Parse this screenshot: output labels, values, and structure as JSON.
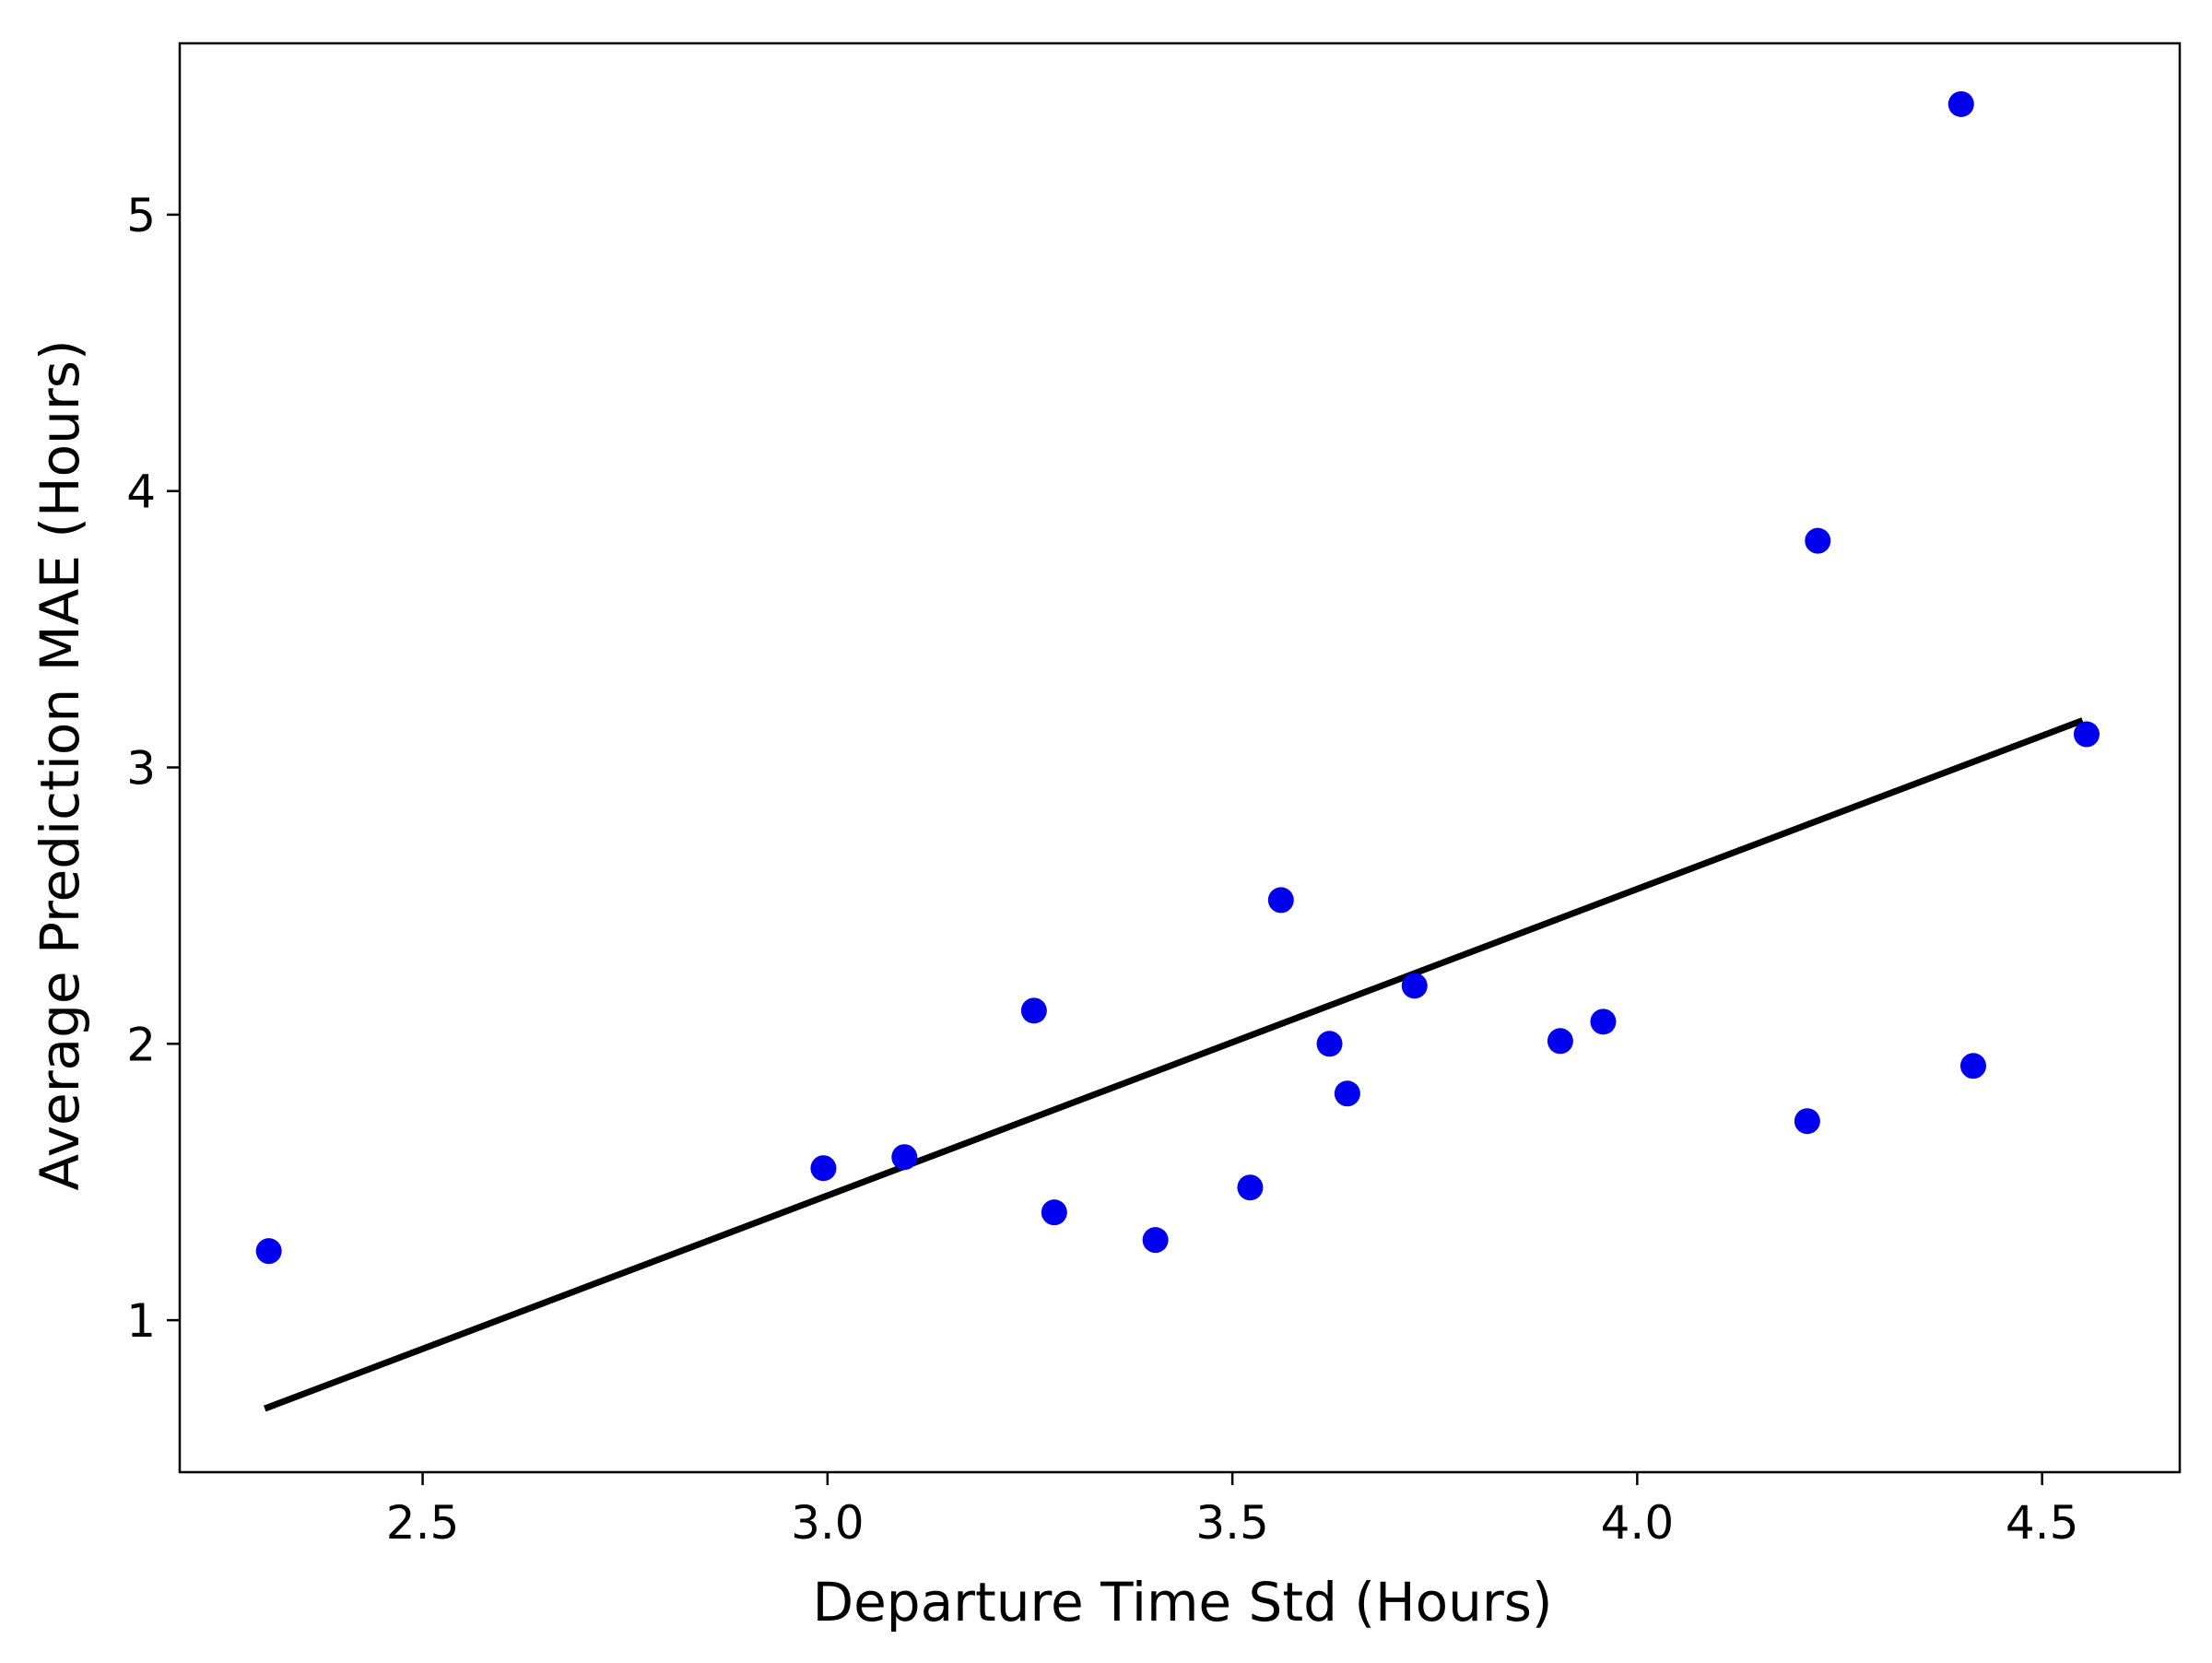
{
  "chart_data": {
    "type": "scatter",
    "title": "",
    "xlabel": "Departure Time Std (Hours)",
    "ylabel": "Average Prediction MAE (Hours)",
    "xlim": [
      2.2,
      4.67
    ],
    "ylim": [
      0.45,
      5.62
    ],
    "xticks": [
      2.5,
      3.0,
      3.5,
      4.0,
      4.5
    ],
    "xtick_labels": [
      "2.5",
      "3.0",
      "3.5",
      "4.0",
      "4.5"
    ],
    "yticks": [
      1,
      2,
      3,
      4,
      5
    ],
    "ytick_labels": [
      "1",
      "2",
      "3",
      "4",
      "5"
    ],
    "grid": false,
    "legend": "none",
    "marker_color": "#0000ee",
    "line_color": "#000000",
    "points": {
      "x": [
        2.31,
        2.995,
        3.095,
        3.255,
        3.28,
        3.405,
        3.522,
        3.56,
        3.62,
        3.642,
        3.725,
        3.905,
        3.958,
        4.21,
        4.223,
        4.4,
        4.415,
        4.555
      ],
      "y": [
        1.25,
        1.55,
        1.59,
        2.12,
        1.39,
        1.29,
        1.48,
        2.52,
        2.0,
        1.82,
        2.21,
        2.01,
        2.08,
        1.72,
        3.82,
        5.4,
        1.92,
        3.12
      ]
    },
    "fit_line": {
      "x": [
        2.305,
        4.55
      ],
      "y": [
        0.68,
        3.17
      ]
    }
  }
}
